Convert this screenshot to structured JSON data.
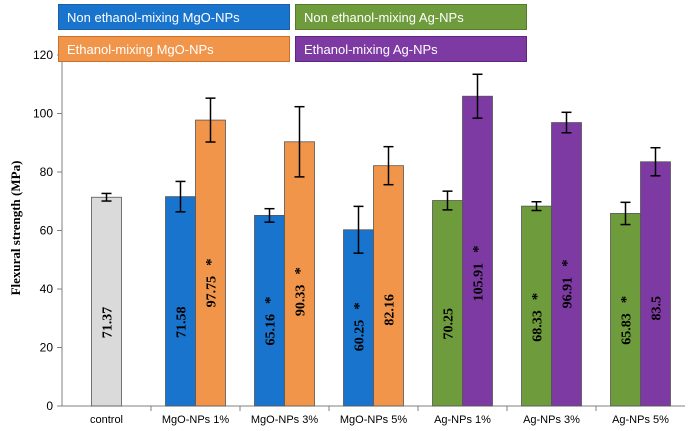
{
  "chart_data": {
    "type": "bar",
    "title": "",
    "xlabel": "",
    "ylabel": "Flexural strength (MPa)",
    "ylim": [
      0,
      120
    ],
    "yticks": [
      0,
      20,
      40,
      60,
      80,
      100,
      120
    ],
    "grid": false,
    "categories": [
      "control",
      "MgO-NPs 1%",
      "MgO-NPs 3%",
      "MgO-NPs 5%",
      "Ag-NPs 1%",
      "Ag-NPs 3%",
      "Ag-NPs 5%"
    ],
    "legend_placement": "top",
    "legend": [
      {
        "label": "Non ethanol-mixing MgO-NPs",
        "color": "#1874cd"
      },
      {
        "label": "Non ethanol-mixing  Ag-NPs",
        "color": "#6e9b3c"
      },
      {
        "label": "Ethanol-mixing MgO-NPs",
        "color": "#f0954a"
      },
      {
        "label": "Ethanol-mixing  Ag-NPs",
        "color": "#7e3aa3"
      }
    ],
    "bars": [
      {
        "category": "control",
        "value": 71.37,
        "error": 1.3,
        "label": "71.37",
        "sig": false,
        "color": "#dadada"
      },
      {
        "category": "MgO-NPs 1%",
        "value": 71.58,
        "error": 5.2,
        "label": "71.58",
        "sig": false,
        "color": "#1874cd"
      },
      {
        "category": "MgO-NPs 1%",
        "value": 97.75,
        "error": 7.5,
        "label": "97.75",
        "sig": true,
        "color": "#f0954a"
      },
      {
        "category": "MgO-NPs 3%",
        "value": 65.16,
        "error": 2.3,
        "label": "65.16",
        "sig": true,
        "color": "#1874cd"
      },
      {
        "category": "MgO-NPs 3%",
        "value": 90.33,
        "error": 12.0,
        "label": "90.33",
        "sig": true,
        "color": "#f0954a"
      },
      {
        "category": "MgO-NPs 5%",
        "value": 60.25,
        "error": 8.0,
        "label": "60.25",
        "sig": true,
        "color": "#1874cd"
      },
      {
        "category": "MgO-NPs 5%",
        "value": 82.16,
        "error": 6.5,
        "label": "82.16",
        "sig": false,
        "color": "#f0954a"
      },
      {
        "category": "Ag-NPs 1%",
        "value": 70.25,
        "error": 3.2,
        "label": "70.25",
        "sig": false,
        "color": "#6e9b3c"
      },
      {
        "category": "Ag-NPs 1%",
        "value": 105.91,
        "error": 7.5,
        "label": "105.91",
        "sig": true,
        "color": "#7e3aa3"
      },
      {
        "category": "Ag-NPs 3%",
        "value": 68.33,
        "error": 1.5,
        "label": "68.33",
        "sig": true,
        "color": "#6e9b3c"
      },
      {
        "category": "Ag-NPs 3%",
        "value": 96.91,
        "error": 3.5,
        "label": "96.91",
        "sig": true,
        "color": "#7e3aa3"
      },
      {
        "category": "Ag-NPs 5%",
        "value": 65.83,
        "error": 3.8,
        "label": "65.83",
        "sig": true,
        "color": "#6e9b3c"
      },
      {
        "category": "Ag-NPs 5%",
        "value": 83.5,
        "error": 4.8,
        "label": "83.5",
        "sig": false,
        "color": "#7e3aa3"
      }
    ],
    "significance_marker": "*"
  }
}
